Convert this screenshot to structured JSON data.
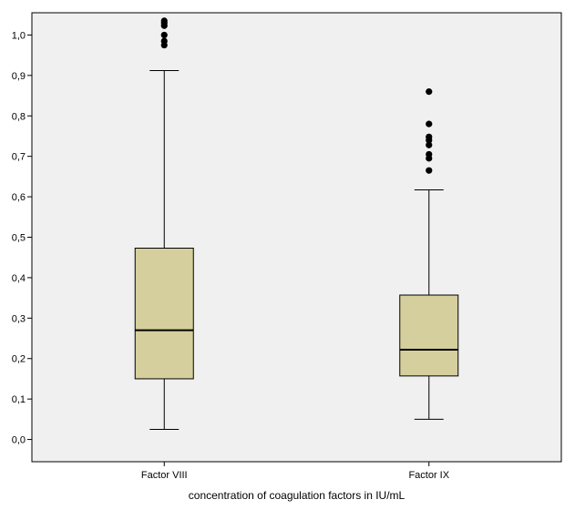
{
  "chart_data": {
    "type": "boxplot",
    "title": "",
    "xlabel": "concentration of coagulation factors in IU/mL",
    "ylabel": "",
    "ylim": [
      -0.055,
      1.055
    ],
    "yticks": [
      0.0,
      0.1,
      0.2,
      0.3,
      0.4,
      0.5,
      0.6,
      0.7,
      0.8,
      0.9,
      1.0
    ],
    "ytick_labels": [
      "0,0",
      "0,1",
      "0,2",
      "0,3",
      "0,4",
      "0,5",
      "0,6",
      "0,7",
      "0,8",
      "0,9",
      "1,0"
    ],
    "grid": false,
    "colors": {
      "plot_bg": "#f0f0f0",
      "box_fill": "#d4cf9c",
      "stroke": "#000000"
    },
    "categories": [
      "Factor VIII",
      "Factor IX"
    ],
    "boxes": [
      {
        "category": "Factor VIII",
        "whisker_low": 0.025,
        "q1": 0.15,
        "median": 0.27,
        "q3": 0.473,
        "whisker_high": 0.912,
        "outliers": [
          0.975,
          0.985,
          1.0,
          1.023,
          1.03,
          1.035
        ]
      },
      {
        "category": "Factor IX",
        "whisker_low": 0.05,
        "q1": 0.157,
        "median": 0.222,
        "q3": 0.357,
        "whisker_high": 0.617,
        "outliers": [
          0.665,
          0.695,
          0.705,
          0.728,
          0.74,
          0.748,
          0.78,
          0.86
        ]
      }
    ]
  }
}
